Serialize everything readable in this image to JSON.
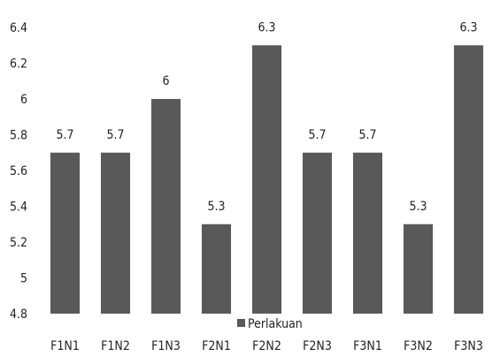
{
  "chart_data": {
    "type": "bar",
    "categories": [
      "F1N1",
      "F1N2",
      "F1N3",
      "F2N1",
      "F2N2",
      "F2N3",
      "F3N1",
      "F3N2",
      "F3N3"
    ],
    "series": [
      {
        "name": "Perlakuan",
        "values": [
          5.7,
          5.7,
          6,
          5.3,
          6.3,
          5.7,
          5.7,
          5.3,
          6.3
        ],
        "color": "#595959"
      }
    ],
    "data_labels": [
      "5.7",
      "5.7",
      "6",
      "5.3",
      "6.3",
      "5.7",
      "5.7",
      "5.3",
      "6.3"
    ],
    "yticks": [
      {
        "value": 4.8,
        "label": "4.8"
      },
      {
        "value": 5,
        "label": "5"
      },
      {
        "value": 5.2,
        "label": "5.2"
      },
      {
        "value": 5.4,
        "label": "5.4"
      },
      {
        "value": 5.6,
        "label": "5.6"
      },
      {
        "value": 5.8,
        "label": "5.8"
      },
      {
        "value": 6,
        "label": "6"
      },
      {
        "value": 6.2,
        "label": "6.2"
      },
      {
        "value": 6.4,
        "label": "6.4"
      }
    ],
    "ylim": [
      4.8,
      6.4
    ],
    "title": "",
    "xlabel": "",
    "ylabel": "",
    "grid": false,
    "legend": {
      "position": "bottom-center",
      "label": "Perlakuan"
    }
  }
}
